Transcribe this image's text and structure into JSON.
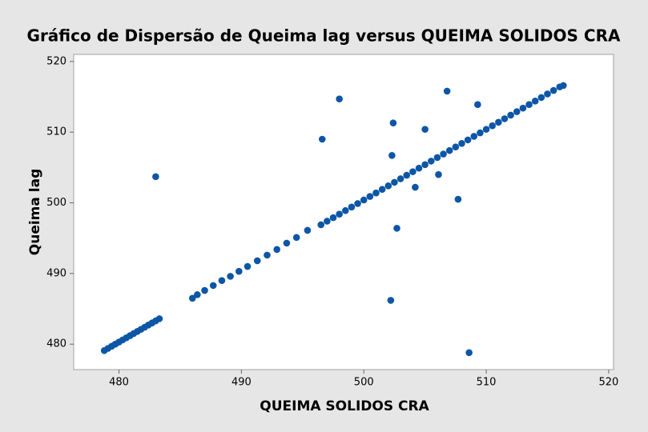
{
  "chart_data": {
    "type": "scatter",
    "title": "Gráfico de Dispersão de Queima lag versus QUEIMA SOLIDOS CRA",
    "x_label": "QUEIMA SOLIDOS CRA",
    "y_label": "Queima lag",
    "color": "#0d56a6",
    "xlim": [
      476.3,
      520.4
    ],
    "xticks": [
      480,
      490,
      500,
      510,
      520
    ],
    "ylim": [
      476.4,
      521.0
    ],
    "yticks": [
      480,
      490,
      500,
      510,
      520
    ],
    "x": [
      478.8,
      479.1,
      479.4,
      479.7,
      480.0,
      480.3,
      480.6,
      480.9,
      481.2,
      481.5,
      481.8,
      482.1,
      482.4,
      482.7,
      483.0,
      483.3,
      486.0,
      486.4,
      487.0,
      487.7,
      488.4,
      489.1,
      489.8,
      490.5,
      491.3,
      492.1,
      492.9,
      493.7,
      494.5,
      495.4,
      496.5,
      497,
      497.5,
      498,
      498.5,
      499,
      499.5,
      500,
      500.5,
      501,
      501.5,
      502,
      502.5,
      503,
      503.5,
      504,
      504.5,
      505,
      505.5,
      506,
      506.5,
      507,
      507.5,
      508,
      508.5,
      509,
      509.5,
      510,
      510.5,
      511,
      511.5,
      512,
      512.5,
      513,
      513.5,
      514,
      514.5,
      515,
      515.5,
      516,
      516.3,
      483.0,
      496.6,
      498.0,
      502.2,
      502.3,
      502.4,
      502.7,
      504.2,
      505.0,
      506.1,
      506.8,
      507.7,
      508.6,
      509.3
    ],
    "y": [
      479.1,
      479.4,
      479.7,
      480.0,
      480.3,
      480.6,
      480.9,
      481.2,
      481.5,
      481.8,
      482.1,
      482.4,
      482.7,
      483.0,
      483.3,
      483.6,
      486.5,
      487.0,
      487.6,
      488.3,
      489.0,
      489.6,
      490.3,
      491.0,
      491.8,
      492.6,
      493.4,
      494.3,
      495.1,
      496.1,
      496.9,
      497.4,
      497.9,
      498.4,
      498.9,
      499.4,
      499.9,
      500.4,
      500.9,
      501.4,
      501.9,
      502.4,
      502.9,
      503.4,
      503.9,
      504.4,
      504.9,
      505.4,
      505.9,
      506.4,
      506.9,
      507.4,
      507.9,
      508.4,
      508.9,
      509.4,
      509.9,
      510.4,
      510.9,
      511.4,
      511.9,
      512.4,
      512.9,
      513.4,
      513.9,
      514.4,
      514.9,
      515.4,
      515.9,
      516.4,
      516.6,
      503.7,
      509.0,
      514.7,
      486.2,
      506.7,
      511.3,
      496.4,
      502.2,
      510.4,
      504.0,
      515.8,
      500.5,
      478.8,
      513.9
    ]
  }
}
